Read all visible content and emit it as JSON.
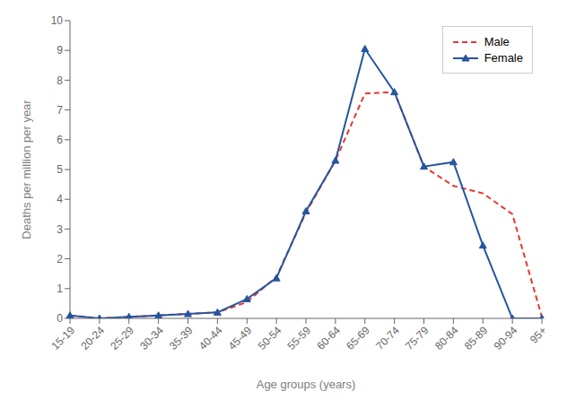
{
  "chart_data": {
    "type": "line",
    "categories": [
      "15-19",
      "20-24",
      "25-29",
      "30-34",
      "35-39",
      "40-44",
      "45-49",
      "50-54",
      "55-59",
      "60-64",
      "65-69",
      "70-74",
      "75-79",
      "80-84",
      "85-89",
      "90-94",
      "95+"
    ],
    "series": [
      {
        "name": "Male",
        "color": "#e8372c",
        "line_style": "dashed",
        "marker": "none",
        "values": [
          0.1,
          0.0,
          0.05,
          0.1,
          0.15,
          0.2,
          0.55,
          1.4,
          3.55,
          5.3,
          7.55,
          7.6,
          5.1,
          4.45,
          4.2,
          3.5,
          0.05
        ]
      },
      {
        "name": "Female",
        "color": "#2655a0",
        "line_style": "solid",
        "marker": "triangle",
        "values": [
          0.1,
          0.0,
          0.05,
          0.1,
          0.15,
          0.2,
          0.65,
          1.35,
          3.6,
          5.3,
          9.05,
          7.6,
          5.1,
          5.25,
          2.45,
          0.0,
          0.0
        ]
      }
    ],
    "xlabel": "Age groups (years)",
    "ylabel": "Deaths per million per year",
    "ylim": [
      0,
      10
    ],
    "yticks": [
      0,
      1,
      2,
      3,
      4,
      5,
      6,
      7,
      8,
      9,
      10
    ],
    "grid": false,
    "legend": "upper right"
  }
}
